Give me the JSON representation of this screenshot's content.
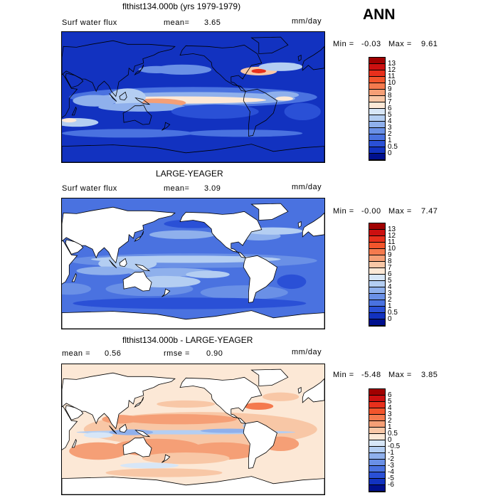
{
  "season": "ANN",
  "panels": [
    {
      "id": "model",
      "title": "flthist134.000b (yrs 1979-1979)",
      "left_label": "Surf water flux",
      "stat1_label": "mean=",
      "stat1_value": "3.65",
      "stat2_label": "",
      "stat2_value": "",
      "units": "mm/day",
      "minmax_label": "Min =",
      "min_value": "-0.03",
      "max_label": "Max =",
      "max_value": "9.61",
      "land_masked": false,
      "field": "model",
      "colorbar_levels": [
        "13",
        "12",
        "11",
        "10",
        "9",
        "8",
        "7",
        "6",
        "5",
        "4",
        "3",
        "2",
        "1",
        "0.5",
        "0"
      ],
      "colorbar_colors": [
        "#a00000",
        "#cc1010",
        "#e8301c",
        "#f2552c",
        "#f47a4e",
        "#f59f76",
        "#f8c7a6",
        "#fce8d6",
        "#d7e6f7",
        "#b4cef2",
        "#8fb0ec",
        "#6a90e6",
        "#4a72e0",
        "#2a50d6",
        "#1232c0",
        "#00108e"
      ]
    },
    {
      "id": "obs",
      "title": "LARGE-YEAGER",
      "left_label": "Surf water flux",
      "stat1_label": "mean=",
      "stat1_value": "3.09",
      "stat2_label": "",
      "stat2_value": "",
      "units": "mm/day",
      "minmax_label": "Min =",
      "min_value": "-0.00",
      "max_label": "Max =",
      "max_value": "7.47",
      "land_masked": true,
      "field": "obs",
      "colorbar_levels": [
        "13",
        "12",
        "11",
        "10",
        "9",
        "8",
        "7",
        "6",
        "5",
        "4",
        "3",
        "2",
        "1",
        "0.5",
        "0"
      ],
      "colorbar_colors": [
        "#a00000",
        "#cc1010",
        "#e8301c",
        "#f2552c",
        "#f47a4e",
        "#f59f76",
        "#f8c7a6",
        "#fce8d6",
        "#d7e6f7",
        "#b4cef2",
        "#8fb0ec",
        "#6a90e6",
        "#4a72e0",
        "#2a50d6",
        "#1232c0",
        "#00108e"
      ]
    },
    {
      "id": "diff",
      "title": "flthist134.000b - LARGE-YEAGER",
      "left_label": "",
      "stat1_label": "mean =",
      "stat1_value": "0.56",
      "stat2_label": "rmse =",
      "stat2_value": "0.90",
      "units": "mm/day",
      "minmax_label": "Min =",
      "min_value": "-5.48",
      "max_label": "Max =",
      "max_value": "3.85",
      "land_masked": true,
      "field": "diff",
      "colorbar_levels": [
        "6",
        "5",
        "4",
        "3",
        "2",
        "1",
        "0.5",
        "0",
        "-0.5",
        "-1",
        "-2",
        "-3",
        "-4",
        "-5",
        "-6"
      ],
      "colorbar_colors": [
        "#a00000",
        "#cc1010",
        "#e8301c",
        "#f2552c",
        "#f47a4e",
        "#f59f76",
        "#f8c7a6",
        "#fce8d6",
        "#d7e6f7",
        "#b4cef2",
        "#8fb0ec",
        "#6a90e6",
        "#4a72e0",
        "#2a50d6",
        "#1232c0",
        "#00108e"
      ]
    }
  ],
  "chart_data": [
    {
      "type": "heatmap",
      "title": "flthist134.000b (yrs 1979-1979)",
      "variable": "Surf water flux",
      "units": "mm/day",
      "mean": 3.65,
      "min": -0.03,
      "max": 9.61,
      "contour_levels": [
        0,
        0.5,
        1,
        2,
        3,
        4,
        5,
        6,
        7,
        8,
        9,
        10,
        11,
        12,
        13
      ],
      "x": "longitude",
      "y": "latitude"
    },
    {
      "type": "heatmap",
      "title": "LARGE-YEAGER",
      "variable": "Surf water flux",
      "units": "mm/day",
      "mean": 3.09,
      "min": -0.0,
      "max": 7.47,
      "contour_levels": [
        0,
        0.5,
        1,
        2,
        3,
        4,
        5,
        6,
        7,
        8,
        9,
        10,
        11,
        12,
        13
      ],
      "x": "longitude",
      "y": "latitude"
    },
    {
      "type": "heatmap",
      "title": "flthist134.000b - LARGE-YEAGER",
      "units": "mm/day",
      "mean": 0.56,
      "rmse": 0.9,
      "min": -5.48,
      "max": 3.85,
      "contour_levels": [
        -6,
        -5,
        -4,
        -3,
        -2,
        -1,
        -0.5,
        0,
        0.5,
        1,
        2,
        3,
        4,
        5,
        6
      ],
      "x": "longitude",
      "y": "latitude"
    }
  ]
}
